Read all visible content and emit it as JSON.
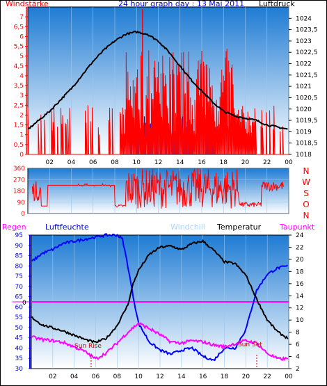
{
  "panel_top": {
    "title": "24 hour graph day : 13 Mai 2011",
    "left_label": "Windstärke",
    "right_label": "Luftdruck"
  },
  "panel_mid": {
    "dir_letters": [
      "N",
      "W",
      "S",
      "O",
      "N"
    ]
  },
  "panel_bottom": {
    "labels": {
      "regen": "Regen",
      "luftfeuchte": "Luftfeuchte",
      "windchill": "Windchill",
      "temperatur": "Temperatur",
      "taupunkt": "Taupunkt"
    },
    "zero_label": "0",
    "sun_rise": "Sun Rise",
    "sun_set": "Sun Set"
  },
  "colors": {
    "wind": "#ff0000",
    "gust_fill": "#0000cc",
    "pressure": "#000000",
    "direction": "#ff0000",
    "humidity": "#0000ff",
    "temperature": "#000000",
    "dewpoint": "#ff00ff",
    "windchill": "#aad4ff",
    "rain": "#ff00ff",
    "bg_top": "#1e7bd3",
    "bg_bottom": "#ffffff"
  },
  "chart_data": [
    {
      "type": "line",
      "title": "24 hour graph day : 13 Mai 2011",
      "xlabel": "",
      "x_ticks": [
        "02",
        "04",
        "06",
        "08",
        "10",
        "12",
        "14",
        "16",
        "18",
        "20",
        "22",
        "00"
      ],
      "left_axis": {
        "label": "Windstärke",
        "ylim": [
          0,
          7.5
        ],
        "ticks": [
          "0",
          "0,5",
          "1",
          "1,5",
          "2",
          "2,5",
          "3",
          "3,5",
          "4",
          "4,5",
          "5",
          "5,5",
          "6",
          "6,5",
          "7"
        ]
      },
      "right_axis": {
        "label": "Luftdruck",
        "ylim": [
          1018,
          1024.5
        ],
        "ticks": [
          "1018",
          "1018,5",
          "1019",
          "1019,5",
          "1020",
          "1020,5",
          "1021",
          "1021,5",
          "1022",
          "1022,5",
          "1023",
          "1023,5",
          "1024"
        ]
      },
      "series": [
        {
          "name": "Luftdruck",
          "axis": "right",
          "x": [
            0.0,
            1,
            2,
            3,
            4,
            5,
            6,
            7,
            8,
            9,
            10,
            11,
            12,
            13,
            14,
            15,
            16,
            17,
            18,
            19,
            20,
            21,
            22,
            23,
            24
          ],
          "values": [
            1019.1,
            1019.5,
            1019.9,
            1020.4,
            1020.9,
            1021.5,
            1022.1,
            1022.6,
            1023.0,
            1023.3,
            1023.4,
            1023.3,
            1023.0,
            1022.5,
            1021.9,
            1021.3,
            1020.8,
            1020.3,
            1019.9,
            1019.7,
            1019.6,
            1019.5,
            1019.3,
            1019.2,
            1019.1
          ]
        }
      ]
    },
    {
      "type": "line",
      "title": "",
      "ylim": [
        0,
        360
      ],
      "y_ticks": [
        "0",
        "90",
        "180",
        "270",
        "360"
      ],
      "x_ticks": []
    },
    {
      "type": "line",
      "title": "",
      "x_ticks": [
        "02",
        "04",
        "06",
        "08",
        "10",
        "12",
        "14",
        "16",
        "18",
        "20",
        "22",
        "00"
      ],
      "left_axis": {
        "label": "Luftfeuchte",
        "ylim": [
          30,
          95
        ],
        "ticks": [
          "30",
          "35",
          "40",
          "45",
          "50",
          "55",
          "60",
          "65",
          "70",
          "75",
          "80",
          "85",
          "90",
          "95"
        ]
      },
      "right_axis": {
        "label": "Temperatur",
        "ylim": [
          2,
          24
        ],
        "ticks": [
          "2",
          "4",
          "6",
          "8",
          "10",
          "12",
          "14",
          "16",
          "18",
          "20",
          "22",
          "24"
        ]
      },
      "series": [
        {
          "name": "Luftfeuchte",
          "axis": "left",
          "x": [
            0.0,
            1,
            2,
            3,
            4,
            5,
            6,
            7,
            8,
            8.5,
            9,
            9.5,
            10,
            11,
            12,
            13,
            14,
            15,
            16,
            17,
            18,
            19,
            20,
            21,
            22,
            23,
            24
          ],
          "values": [
            82,
            86,
            88,
            91,
            92,
            93,
            94,
            95,
            95,
            93,
            80,
            65,
            52,
            43,
            39,
            37,
            39,
            40,
            36,
            34,
            40,
            40,
            49,
            68,
            76,
            79,
            80
          ]
        },
        {
          "name": "Temperatur",
          "axis": "right",
          "x": [
            0.0,
            1,
            2,
            3,
            4,
            5,
            6,
            7,
            8,
            9,
            9.5,
            10,
            11,
            12,
            13,
            14,
            15,
            16,
            17,
            18,
            19,
            20,
            21,
            22,
            23,
            24
          ],
          "values": [
            10.5,
            9.2,
            8.7,
            8.2,
            7.5,
            6.8,
            6.3,
            7.0,
            9.1,
            12.5,
            16.0,
            18.2,
            20.8,
            22.0,
            22.2,
            21.6,
            22.6,
            23.0,
            21.5,
            19.6,
            19.3,
            17.4,
            13.5,
            10.0,
            8.0,
            6.9
          ]
        },
        {
          "name": "Taupunkt",
          "axis": "right",
          "x": [
            0.0,
            1,
            2,
            3,
            4,
            5,
            6,
            7,
            8,
            9,
            10,
            11,
            12,
            13,
            14,
            15,
            16,
            17,
            18,
            19,
            20,
            21,
            22,
            23,
            24
          ],
          "values": [
            7.2,
            6.8,
            6.6,
            6.3,
            5.6,
            4.8,
            3.6,
            4.6,
            6.2,
            8.0,
            9.5,
            8.6,
            7.6,
            6.4,
            6.2,
            6.6,
            6.4,
            5.9,
            5.6,
            6.1,
            6.6,
            6.2,
            4.5,
            3.6,
            3.6
          ]
        }
      ],
      "rain_zero_line": 0,
      "annotations": [
        "Sun Rise",
        "Sun Set"
      ]
    }
  ]
}
